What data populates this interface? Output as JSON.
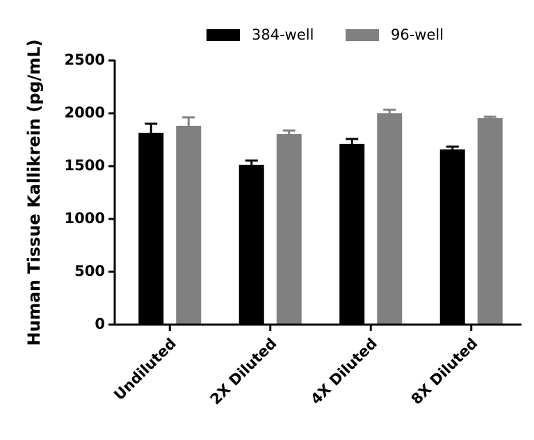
{
  "chart_data": {
    "type": "bar",
    "y_label": "Human Tissue Kallikrein (pg/mL)",
    "categories": [
      "Undiluted",
      "2X Diluted",
      "4X Diluted",
      "8X Diluted"
    ],
    "series": [
      {
        "name": "384-well",
        "color": "#000000",
        "values": [
          1816,
          1513,
          1711,
          1658
        ],
        "errors": [
          85,
          40,
          46,
          26
        ]
      },
      {
        "name": "96-well",
        "color": "#808080",
        "values": [
          1882,
          1803,
          2000,
          1954
        ],
        "errors": [
          79,
          33,
          33,
          13
        ]
      }
    ],
    "ylim": [
      0,
      2500
    ],
    "yticks": [
      0,
      500,
      1000,
      1500,
      2000,
      2500
    ],
    "grid": false
  }
}
